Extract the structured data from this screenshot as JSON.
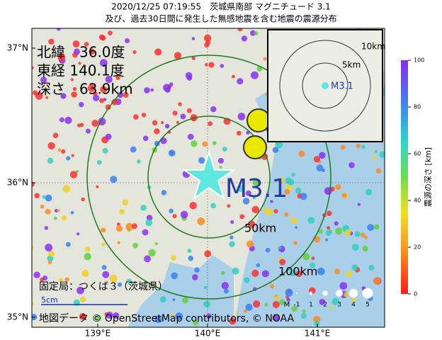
{
  "header": {
    "line1": "2020/12/25 07:19:55　茨城県南部 マグニチュード 3.1",
    "line2": "及び、過去30日間に発生した無感地震を含む地震の震源分布"
  },
  "info": {
    "lat": "北緯　36.0度",
    "lon": "東経 140.1度",
    "depth": "深さ　63.9km"
  },
  "map": {
    "magnitude": "M3.1",
    "ring_50": "50km",
    "ring_100": "100km",
    "station": "固定局：つくば３（茨城県）",
    "scale": "5cm",
    "credit": "地図データ © OpenStreetMap contributors, © NOAA",
    "lat_ticks": [
      {
        "value": 37,
        "label": "37°N"
      },
      {
        "value": 36,
        "label": "36°N"
      },
      {
        "value": 35,
        "label": "35°N"
      }
    ],
    "lon_ticks": [
      {
        "value": 139,
        "label": "139°E"
      },
      {
        "value": 140,
        "label": "140°E"
      },
      {
        "value": 141,
        "label": "141°E"
      }
    ]
  },
  "inset": {
    "ring_10": "10km",
    "ring_5": "5km",
    "magnitude": "M3.1"
  },
  "colorbar": {
    "label": "震源の深さ [km]",
    "lim": [
      0,
      100
    ],
    "ticks": [
      0,
      20,
      40,
      60,
      80,
      100
    ]
  },
  "mag_legend": {
    "title": "M",
    "labels": [
      "-1",
      "1",
      "2",
      "3",
      "4",
      "5"
    ]
  }
}
